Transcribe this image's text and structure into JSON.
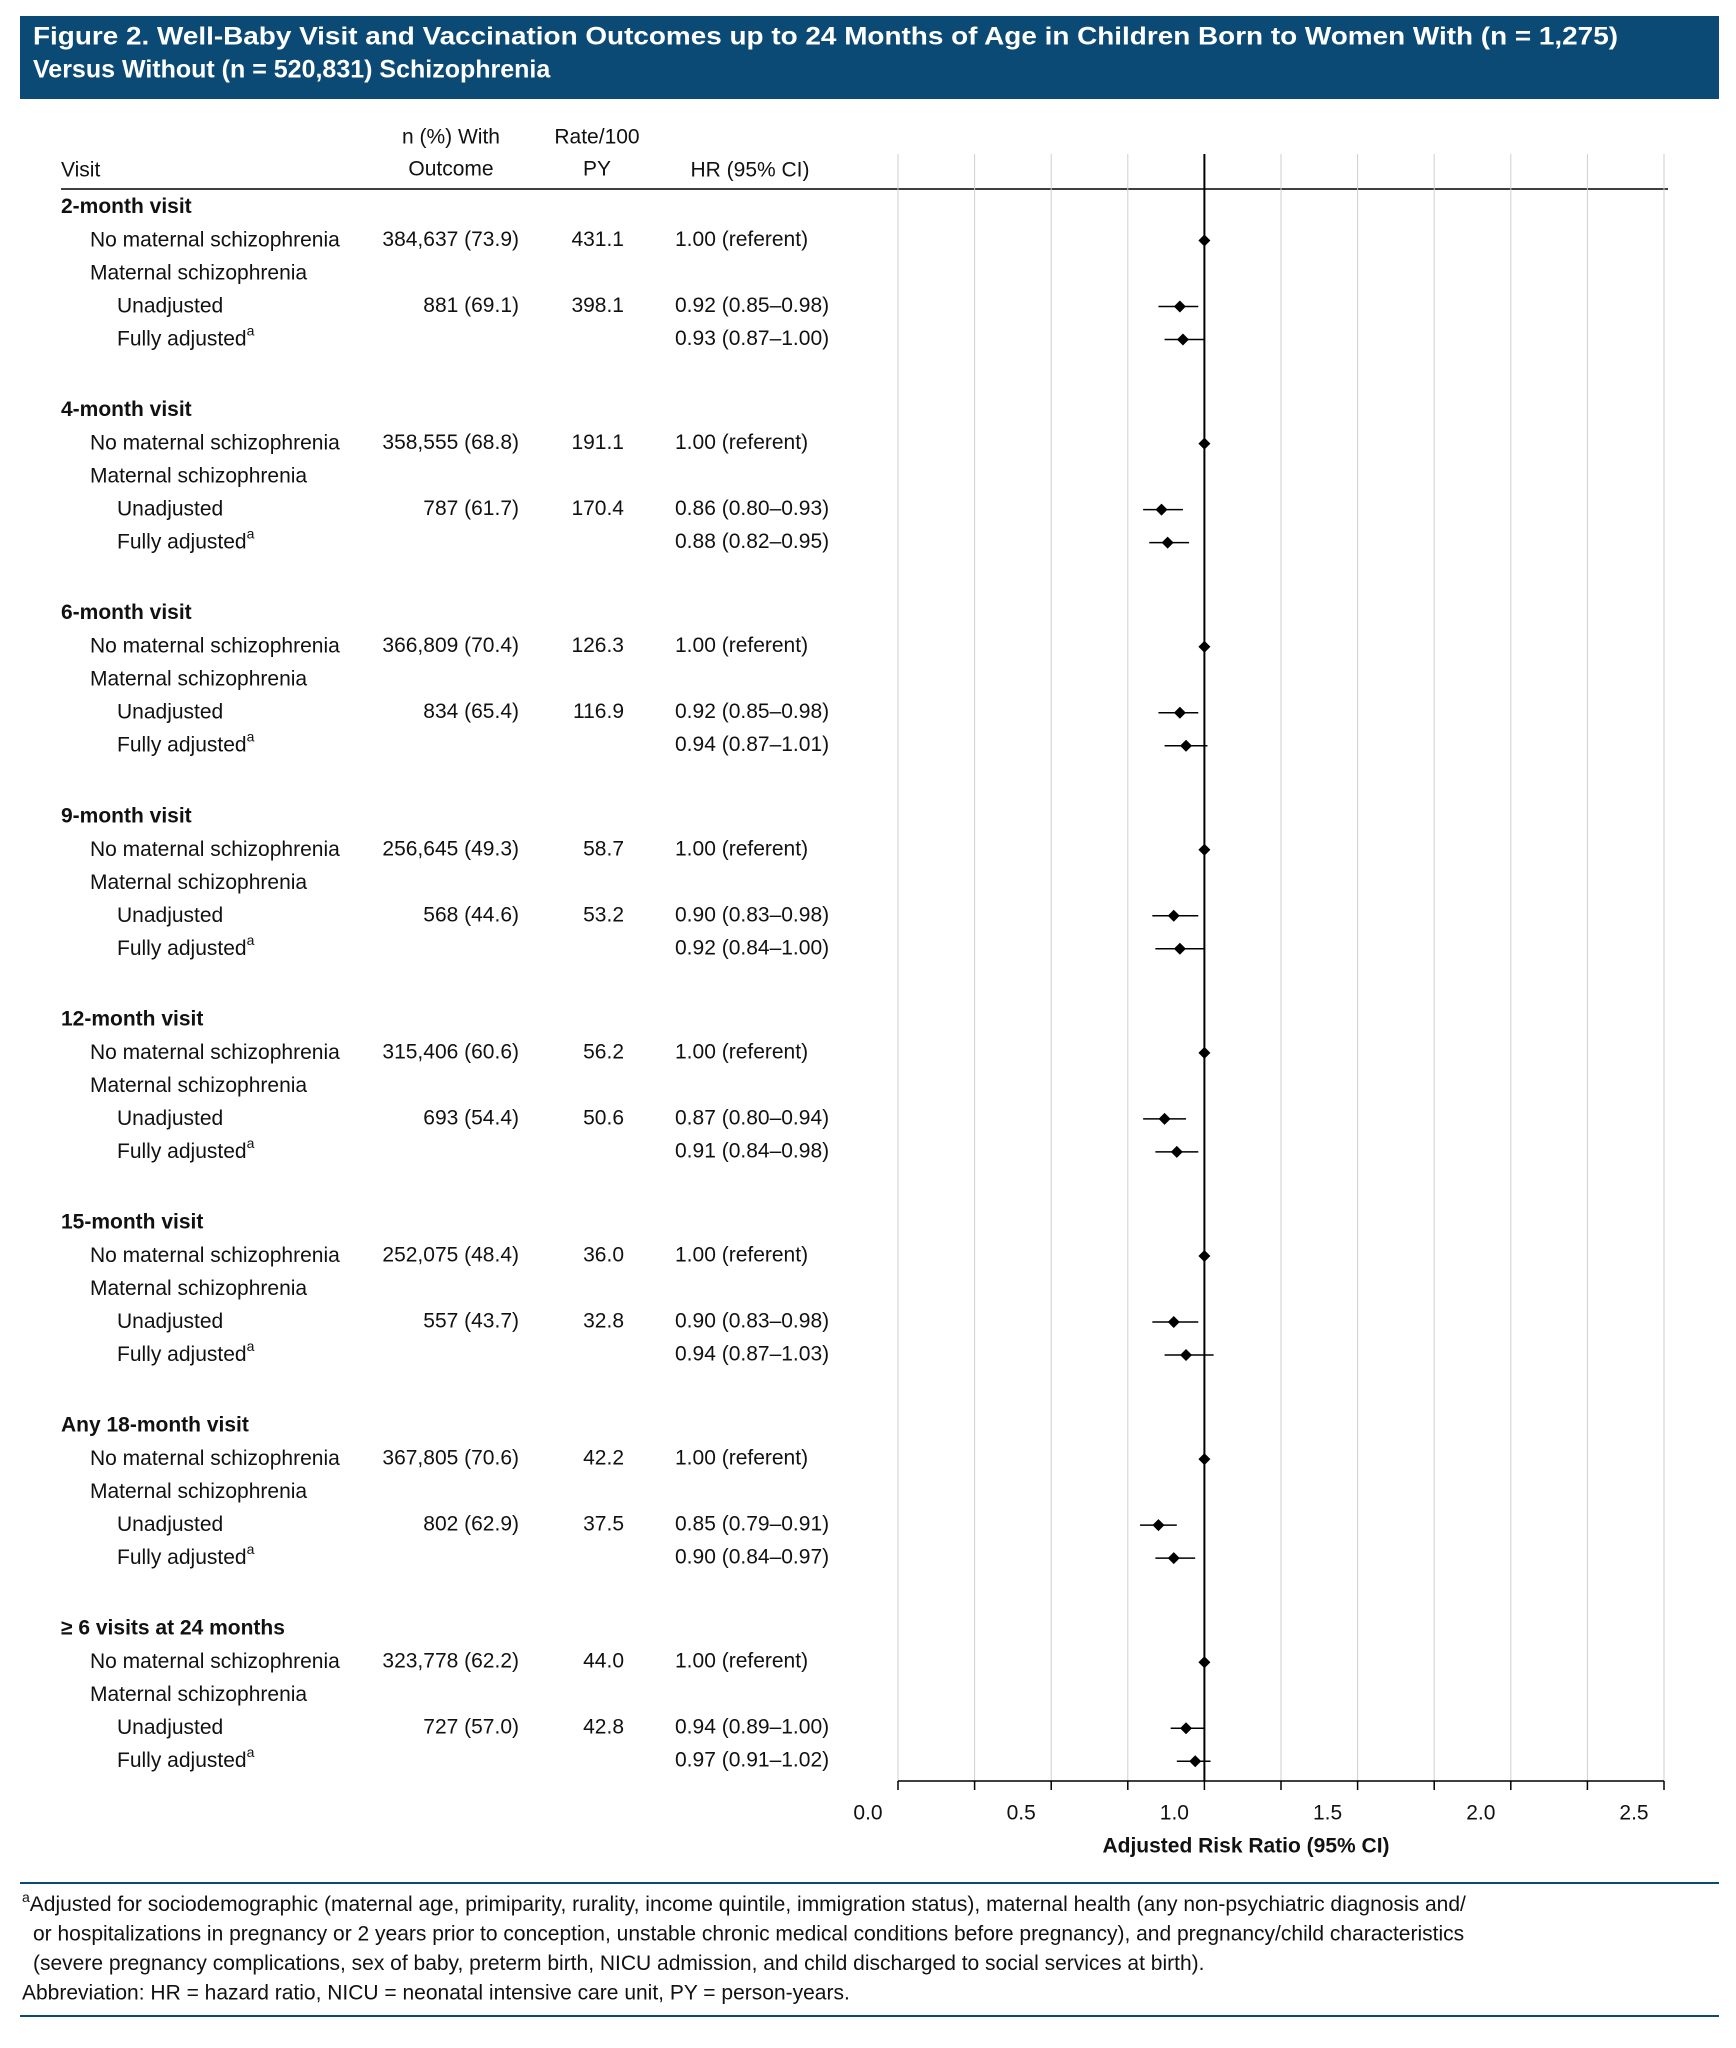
{
  "title": [
    "Figure 2. Well-Baby Visit and Vaccination Outcomes up to 24 Months of Age in Children Born to Women With (n = 1,275)",
    "Versus Without (n = 520,831) Schizophrenia"
  ],
  "table": {
    "headers": {
      "visit": [
        "Visit"
      ],
      "n": [
        "n (%) With",
        "Outcome"
      ],
      "rate": [
        "Rate/100",
        "PY"
      ],
      "hr": [
        "HR (95% CI)"
      ]
    },
    "groups": [
      {
        "label": "2-month visit",
        "rows": [
          {
            "label": "No maternal schizophrenia",
            "n": "384,637 (73.9)",
            "rate": "431.1"
          },
          {
            "label": "Maternal schizophrenia"
          },
          {
            "label": "Unadjusted",
            "n": "881 (69.1)",
            "rate": "398.1"
          },
          {
            "label": "Fully adjusted",
            "note": "a"
          }
        ]
      },
      {
        "label": "4-month visit",
        "rows": [
          {
            "label": "No maternal schizophrenia",
            "n": "358,555 (68.8)",
            "rate": "191.1"
          },
          {
            "label": "Maternal schizophrenia"
          },
          {
            "label": "Unadjusted",
            "n": "787 (61.7)",
            "rate": "170.4"
          },
          {
            "label": "Fully adjusted",
            "note": "a"
          }
        ]
      },
      {
        "label": "6-month visit",
        "rows": [
          {
            "label": "No maternal schizophrenia",
            "n": "366,809 (70.4)",
            "rate": "126.3"
          },
          {
            "label": "Maternal schizophrenia"
          },
          {
            "label": "Unadjusted",
            "n": "834 (65.4)",
            "rate": "116.9"
          },
          {
            "label": "Fully adjusted",
            "note": "a"
          }
        ]
      },
      {
        "label": "9-month visit",
        "rows": [
          {
            "label": "No maternal schizophrenia",
            "n": "256,645 (49.3)",
            "rate": "58.7"
          },
          {
            "label": "Maternal schizophrenia"
          },
          {
            "label": "Unadjusted",
            "n": "568 (44.6)",
            "rate": "53.2"
          },
          {
            "label": "Fully adjusted",
            "note": "a"
          }
        ]
      },
      {
        "label": "12-month visit",
        "rows": [
          {
            "label": "No maternal schizophrenia",
            "n": "315,406 (60.6)",
            "rate": "56.2"
          },
          {
            "label": "Maternal schizophrenia"
          },
          {
            "label": "Unadjusted",
            "n": "693 (54.4)",
            "rate": "50.6"
          },
          {
            "label": "Fully adjusted",
            "note": "a"
          }
        ]
      },
      {
        "label": "15-month visit",
        "rows": [
          {
            "label": "No maternal schizophrenia",
            "n": "252,075 (48.4)",
            "rate": "36.0"
          },
          {
            "label": "Maternal schizophrenia"
          },
          {
            "label": "Unadjusted",
            "n": "557 (43.7)",
            "rate": "32.8"
          },
          {
            "label": "Fully adjusted",
            "note": "a"
          }
        ]
      },
      {
        "label": "Any 18-month visit",
        "rows": [
          {
            "label": "No maternal schizophrenia",
            "n": "367,805 (70.6)",
            "rate": "42.2"
          },
          {
            "label": "Maternal schizophrenia"
          },
          {
            "label": "Unadjusted",
            "n": "802 (62.9)",
            "rate": "37.5"
          },
          {
            "label": "Fully adjusted",
            "note": "a"
          }
        ]
      },
      {
        "label": "≥ 6 visits at 24 months",
        "rows": [
          {
            "label": "No maternal schizophrenia",
            "n": "323,778 (62.2)",
            "rate": "44.0"
          },
          {
            "label": "Maternal schizophrenia"
          },
          {
            "label": "Unadjusted",
            "n": "727 (57.0)",
            "rate": "42.8"
          },
          {
            "label": "Fully adjusted",
            "note": "a"
          }
        ]
      }
    ]
  },
  "chart_data": {
    "type": "forest",
    "xlabel": "Adjusted Risk Ratio (95% CI)",
    "color": "#000000",
    "values": [
      1.0,
      0.92,
      0.93,
      1.0,
      0.86,
      0.88,
      1.0,
      0.92,
      0.94,
      1.0,
      0.9,
      0.92,
      1.0,
      0.87,
      0.91,
      1.0,
      0.9,
      0.94,
      1.0,
      0.85,
      0.9,
      1.0,
      0.94,
      0.97
    ],
    "lower": [
      null,
      0.85,
      0.87,
      null,
      0.8,
      0.82,
      null,
      0.85,
      0.87,
      null,
      0.83,
      0.84,
      null,
      0.8,
      0.84,
      null,
      0.83,
      0.87,
      null,
      0.79,
      0.84,
      null,
      0.89,
      0.91
    ],
    "upper": [
      null,
      0.98,
      1.0,
      null,
      0.93,
      0.95,
      null,
      0.98,
      1.01,
      null,
      0.98,
      1.0,
      null,
      0.94,
      0.98,
      null,
      0.98,
      1.03,
      null,
      0.91,
      0.97,
      null,
      1.0,
      1.02
    ],
    "value_labels": [
      "1.00 (referent)",
      "0.92 (0.85–0.98)",
      "0.93 (0.87–1.00)",
      "1.00 (referent)",
      "0.86 (0.80–0.93)",
      "0.88 (0.82–0.95)",
      "1.00 (referent)",
      "0.92 (0.85–0.98)",
      "0.94 (0.87–1.01)",
      "1.00 (referent)",
      "0.90 (0.83–0.98)",
      "0.92 (0.84–1.00)",
      "1.00 (referent)",
      "0.87 (0.80–0.94)",
      "0.91 (0.84–0.98)",
      "1.00 (referent)",
      "0.90 (0.83–0.98)",
      "0.94 (0.87–1.03)",
      "1.00 (referent)",
      "0.85 (0.79–0.91)",
      "0.90 (0.84–0.97)",
      "1.00 (referent)",
      "0.94 (0.89–1.00)",
      "0.97 (0.91–1.02)"
    ],
    "xlim": [
      0,
      2.5
    ],
    "xticks": [
      {
        "value": 0,
        "label": "0.0"
      },
      0.5,
      {
        "value": 1,
        "label": "1.0"
      },
      1.5,
      {
        "value": 2,
        "label": "2.0"
      },
      2.5
    ],
    "xminor_ticks": [
      0.25,
      0.75,
      1.25,
      1.75,
      2.25
    ],
    "reference_line": 1,
    "grid": true
  },
  "footnotes": {
    "mark": "a",
    "lines": [
      "Adjusted for sociodemographic (maternal age, primiparity, rurality, income quintile, immigration status), maternal health (any non-psychiatric diagnosis and/",
      "or hospitalizations in pregnancy or 2 years prior to conception, unstable chronic medical conditions before pregnancy), and pregnancy/child characteristics",
      "(severe pregnancy complications, sex of baby, preterm birth, NICU admission, and child discharged to social services at birth)."
    ],
    "abbreviation": "Abbreviation: HR = hazard ratio, NICU = neonatal intensive care unit, PY = person-years."
  }
}
